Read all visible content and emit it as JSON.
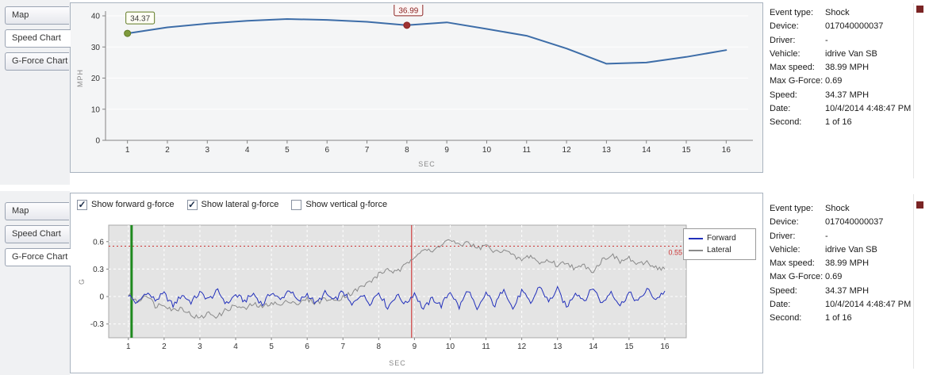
{
  "panels": {
    "top": {
      "tabs": [
        {
          "label": "Map",
          "active": false
        },
        {
          "label": "Speed Chart",
          "active": true
        },
        {
          "label": "G-Force Chart",
          "active": false
        }
      ]
    },
    "bottom": {
      "tabs": [
        {
          "label": "Map",
          "active": false
        },
        {
          "label": "Speed Chart",
          "active": false
        },
        {
          "label": "G-Force Chart",
          "active": true
        }
      ],
      "checkboxes": [
        {
          "label": "Show forward g-force",
          "checked": true
        },
        {
          "label": "Show lateral g-force",
          "checked": true
        },
        {
          "label": "Show vertical g-force",
          "checked": false
        }
      ]
    }
  },
  "details": {
    "rows": [
      {
        "label": "Event type:",
        "value": "Shock"
      },
      {
        "label": "Device:",
        "value": "017040000037"
      },
      {
        "label": "Driver:",
        "value": "-"
      },
      {
        "label": "Vehicle:",
        "value": "idrive Van SB"
      },
      {
        "label": "Max speed:",
        "value": "38.99 MPH"
      },
      {
        "label": "Max G-Force:",
        "value": "0.69"
      },
      {
        "label": "Speed:",
        "value": "34.37 MPH"
      },
      {
        "label": "Date:",
        "value": "10/4/2014 4:48:47 PM"
      },
      {
        "label": "Second:",
        "value": "1 of 16"
      }
    ]
  },
  "chart_data": [
    {
      "type": "line",
      "xlabel": "SEC",
      "ylabel": "MPH",
      "x": [
        1,
        2,
        3,
        4,
        5,
        6,
        7,
        8,
        9,
        10,
        11,
        12,
        13,
        14,
        15,
        16
      ],
      "values": [
        34.37,
        36.3,
        37.5,
        38.4,
        38.99,
        38.7,
        38.1,
        36.99,
        37.9,
        35.8,
        33.6,
        29.5,
        24.6,
        25.0,
        26.8,
        29.0
      ],
      "xlim": [
        0.45,
        16.55
      ],
      "ylim": [
        0,
        40
      ],
      "yticks": [
        0,
        10,
        20,
        30,
        40
      ],
      "xticks": [
        1,
        2,
        3,
        4,
        5,
        6,
        7,
        8,
        9,
        10,
        11,
        12,
        13,
        14,
        15,
        16
      ],
      "line_color": "#3d6da8",
      "grid_color": "#ffffff",
      "markers": [
        {
          "x": 1,
          "y": 34.37,
          "label": "34.37",
          "color": "#7f9a3d",
          "border": "#5f7a22",
          "text_color": "#3a3a3a",
          "box_fill": "#fffef5",
          "label_dx": 16
        },
        {
          "x": 8,
          "y": 36.99,
          "label": "36.99",
          "color": "#9e3232",
          "border": "#8b2525",
          "text_color": "#8b2525",
          "box_fill": "#fdf6f5",
          "label_dx": 2
        }
      ]
    },
    {
      "type": "line",
      "xlabel": "SEC",
      "ylabel": "G",
      "xlim": [
        0.45,
        16.6
      ],
      "ylim": [
        -0.45,
        0.78
      ],
      "yticks": [
        -0.3,
        0,
        0.3,
        0.6
      ],
      "xticks": [
        1,
        2,
        3,
        4,
        5,
        6,
        7,
        8,
        9,
        10,
        11,
        12,
        13,
        14,
        15,
        16
      ],
      "plot_bg": "#e4e4e4",
      "grid_color": "#ffffff",
      "legend_position": "right",
      "threshold_line": {
        "y": 0.55,
        "label": "0.55",
        "color": "#cc3333"
      },
      "event_lines": [
        {
          "x": 1.09,
          "color": "#1f8a1f",
          "width": 3
        },
        {
          "x": 8.92,
          "color": "#cc2222",
          "width": 1
        }
      ],
      "x_start": 1,
      "x_step": 0.25,
      "series": [
        {
          "name": "Forward",
          "color": "#2230bb",
          "noise": 0.03,
          "values": [
            0.02,
            -0.08,
            0.05,
            -0.04,
            0.03,
            -0.1,
            0.02,
            -0.06,
            0.04,
            -0.03,
            0.06,
            -0.08,
            0.02,
            -0.05,
            0.03,
            -0.09,
            0.05,
            -0.04,
            0.08,
            -0.06,
            0.03,
            -0.08,
            0.04,
            -0.05,
            0.06,
            -0.1,
            0.03,
            -0.07,
            0.05,
            -0.12,
            0.02,
            -0.08,
            0.04,
            -0.14,
            -0.02,
            -0.1,
            0.06,
            -0.12,
            0.08,
            -0.16,
            0.04,
            -0.1,
            0.1,
            -0.14,
            0.06,
            -0.08,
            0.12,
            -0.06,
            0.08,
            -0.12,
            0.05,
            -0.04,
            0.1,
            -0.08,
            0.06,
            -0.1,
            0.04,
            -0.06,
            0.08,
            -0.03,
            0.06
          ]
        },
        {
          "name": "Lateral",
          "color": "#8a8a8a",
          "noise": 0.028,
          "values": [
            0.02,
            -0.06,
            0.03,
            -0.1,
            -0.08,
            -0.15,
            -0.12,
            -0.2,
            -0.24,
            -0.18,
            -0.22,
            -0.14,
            -0.1,
            -0.14,
            -0.08,
            -0.12,
            -0.06,
            -0.1,
            -0.04,
            -0.08,
            -0.03,
            -0.07,
            -0.02,
            -0.05,
            0.0,
            0.04,
            0.1,
            0.16,
            0.24,
            0.3,
            0.26,
            0.34,
            0.45,
            0.52,
            0.48,
            0.58,
            0.62,
            0.55,
            0.6,
            0.52,
            0.56,
            0.48,
            0.52,
            0.44,
            0.4,
            0.45,
            0.36,
            0.4,
            0.34,
            0.38,
            0.3,
            0.34,
            0.28,
            0.4,
            0.46,
            0.38,
            0.42,
            0.34,
            0.38,
            0.32,
            0.3
          ]
        }
      ]
    }
  ]
}
